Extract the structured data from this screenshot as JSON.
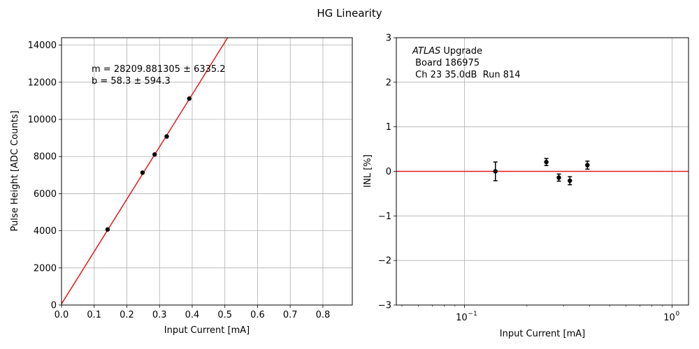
{
  "figure": {
    "title": "HG Linearity"
  },
  "chart_data": [
    {
      "type": "scatter",
      "title": "",
      "xlabel": "Input Current [mA]",
      "ylabel": "Pulse Height [ADC Counts]",
      "xlim": [
        0.0,
        0.89
      ],
      "ylim": [
        0,
        14400
      ],
      "xticks": [
        0.0,
        0.1,
        0.2,
        0.3,
        0.4,
        0.5,
        0.6,
        0.7,
        0.8
      ],
      "xtick_labels": [
        "0.0",
        "0.1",
        "0.2",
        "0.3",
        "0.4",
        "0.5",
        "0.6",
        "0.7",
        "0.8"
      ],
      "yticks": [
        0,
        2000,
        4000,
        6000,
        8000,
        10000,
        12000,
        14000
      ],
      "ytick_labels": [
        "0",
        "2000",
        "4000",
        "6000",
        "8000",
        "10000",
        "12000",
        "14000"
      ],
      "grid": true,
      "series": [
        {
          "x": [
            0.141,
            0.248,
            0.285,
            0.322,
            0.391
          ],
          "y": [
            4070,
            7130,
            8110,
            9080,
            11120
          ],
          "color": "#000000"
        }
      ],
      "fit_line": {
        "slope": 28209.881305,
        "intercept": 58.3,
        "color": "#e31a1c"
      },
      "annotations": [
        "m = 28209.881305 ± 6335.2",
        "b = 58.3 ± 594.3"
      ]
    },
    {
      "type": "scatter",
      "title": "",
      "xlabel": "Input Current [mA]",
      "ylabel": "INL [%]",
      "xscale": "log",
      "xlim": [
        0.047,
        1.2
      ],
      "ylim": [
        -3,
        3
      ],
      "xticks": [
        0.1,
        1.0
      ],
      "xtick_labels": [
        "10",
        "10"
      ],
      "xtick_exponents": [
        "−1",
        "0"
      ],
      "yticks": [
        -3,
        -2,
        -1,
        0,
        1,
        2,
        3
      ],
      "ytick_labels": [
        "−3",
        "−2",
        "−1",
        "0",
        "1",
        "2",
        "3"
      ],
      "grid": true,
      "reference_line": {
        "y": 0,
        "color": "#e31a1c"
      },
      "series": [
        {
          "x": [
            0.141,
            0.248,
            0.285,
            0.322,
            0.391
          ],
          "y": [
            0.0,
            0.21,
            -0.14,
            -0.21,
            0.14
          ],
          "yerr": [
            0.21,
            0.08,
            0.08,
            0.09,
            0.09
          ],
          "color": "#000000"
        }
      ],
      "annotation": {
        "italic": "ATLAS",
        "rest": " Upgrade",
        "line2": " Board 186975",
        "line3": " Ch 23 35.0dB  Run 814"
      }
    }
  ]
}
